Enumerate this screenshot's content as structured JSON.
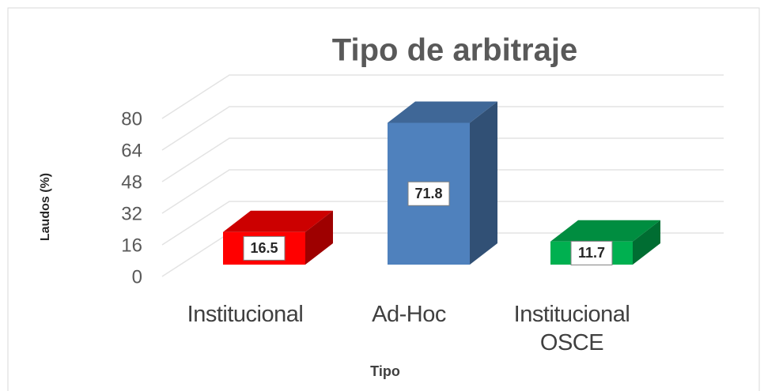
{
  "chart_data": {
    "type": "bar3d",
    "title": "Tipo de arbitraje",
    "y_label": "Laudos (%)",
    "x_label": "Tipo",
    "categories": [
      "Institucional",
      "Ad-Hoc",
      "Institucional OSCE"
    ],
    "values": [
      16.5,
      71.8,
      11.7
    ],
    "colors": [
      "#ff0000",
      "#4f81bd",
      "#00b050"
    ],
    "ylim": [
      0,
      80
    ],
    "yticks": [
      0,
      16,
      32,
      48,
      64,
      80
    ],
    "grid": true
  }
}
